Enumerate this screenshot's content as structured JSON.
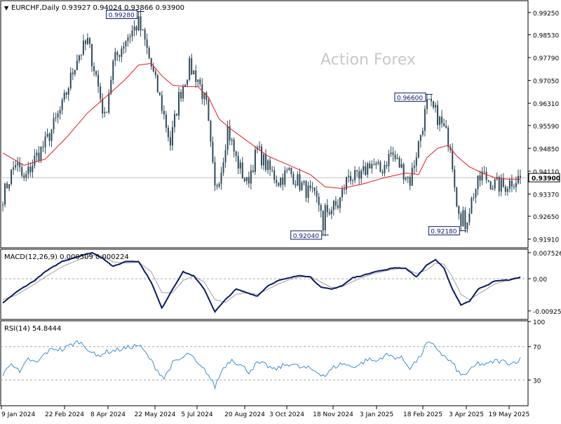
{
  "header": {
    "symbol": "EURCHF,Daily",
    "ohlc": "0.93927 0.94024 0.93866 0.93900"
  },
  "watermark": "Action Forex",
  "colors": {
    "candle": "#2e4a5a",
    "ma": "#e41b1b",
    "macd": "#0b1a66",
    "signal": "#a0a0a0",
    "rsi": "#3a8fd6",
    "grid_dash": "#a8a8a8",
    "frame": "#000000",
    "label_border": "#0b1a66"
  },
  "chart_data": [
    {
      "type": "candlestick",
      "name": "price",
      "ylim": [
        0.9165,
        0.9961
      ],
      "y_ticks": [
        "0.99250",
        "0.98530",
        "0.97790",
        "0.97050",
        "0.96310",
        "0.95590",
        "0.94850",
        "0.94110",
        "0.93370",
        "0.92650",
        "0.91910"
      ],
      "last_price": "0.93900",
      "x_labels": [
        "9 Jan 2024",
        "22 Feb 2024",
        "8 Apr 2024",
        "22 May 2024",
        "5 Jul 2024",
        "20 Aug 2024",
        "3 Oct 2024",
        "18 Nov 2024",
        "3 Jan 2025",
        "18 Feb 2025",
        "3 Apr 2025",
        "19 May 2025"
      ],
      "annotations": [
        {
          "text": "0.99280",
          "value": 0.9928,
          "index": 64
        },
        {
          "text": "0.92040",
          "value": 0.9204,
          "index": 151
        },
        {
          "text": "0.96600",
          "value": 0.966,
          "index": 200
        },
        {
          "text": "0.92180",
          "value": 0.9218,
          "index": 216
        }
      ],
      "keypoints": [
        [
          0,
          0.933
        ],
        [
          6,
          0.944
        ],
        [
          10,
          0.938
        ],
        [
          15,
          0.945
        ],
        [
          20,
          0.95
        ],
        [
          28,
          0.962
        ],
        [
          35,
          0.978
        ],
        [
          40,
          0.983
        ],
        [
          44,
          0.972
        ],
        [
          48,
          0.958
        ],
        [
          52,
          0.976
        ],
        [
          58,
          0.984
        ],
        [
          64,
          0.989
        ],
        [
          67,
          0.983
        ],
        [
          70,
          0.975
        ],
        [
          75,
          0.962
        ],
        [
          79,
          0.95
        ],
        [
          83,
          0.965
        ],
        [
          88,
          0.975
        ],
        [
          92,
          0.971
        ],
        [
          96,
          0.962
        ],
        [
          100,
          0.935
        ],
        [
          103,
          0.942
        ],
        [
          106,
          0.955
        ],
        [
          110,
          0.945
        ],
        [
          115,
          0.937
        ],
        [
          120,
          0.948
        ],
        [
          125,
          0.942
        ],
        [
          130,
          0.938
        ],
        [
          135,
          0.941
        ],
        [
          140,
          0.937
        ],
        [
          146,
          0.933
        ],
        [
          152,
          0.928
        ],
        [
          158,
          0.93
        ],
        [
          163,
          0.94
        ],
        [
          168,
          0.938
        ],
        [
          173,
          0.944
        ],
        [
          178,
          0.941
        ],
        [
          183,
          0.947
        ],
        [
          188,
          0.942
        ],
        [
          192,
          0.938
        ],
        [
          196,
          0.95
        ],
        [
          200,
          0.963
        ],
        [
          204,
          0.96
        ],
        [
          207,
          0.956
        ],
        [
          211,
          0.95
        ],
        [
          214,
          0.932
        ],
        [
          218,
          0.924
        ],
        [
          222,
          0.934
        ],
        [
          226,
          0.94
        ],
        [
          231,
          0.937
        ],
        [
          236,
          0.936
        ],
        [
          240,
          0.938
        ],
        [
          244,
          0.939
        ]
      ],
      "ma_keypoints": [
        [
          0,
          0.947
        ],
        [
          10,
          0.943
        ],
        [
          20,
          0.945
        ],
        [
          30,
          0.952
        ],
        [
          40,
          0.96
        ],
        [
          50,
          0.966
        ],
        [
          58,
          0.971
        ],
        [
          64,
          0.9755
        ],
        [
          70,
          0.976
        ],
        [
          75,
          0.972
        ],
        [
          80,
          0.969
        ],
        [
          86,
          0.9685
        ],
        [
          92,
          0.9685
        ],
        [
          97,
          0.965
        ],
        [
          102,
          0.958
        ],
        [
          107,
          0.955
        ],
        [
          115,
          0.951
        ],
        [
          125,
          0.946
        ],
        [
          135,
          0.943
        ],
        [
          145,
          0.94
        ],
        [
          152,
          0.936
        ],
        [
          160,
          0.9355
        ],
        [
          170,
          0.937
        ],
        [
          180,
          0.939
        ],
        [
          190,
          0.9405
        ],
        [
          196,
          0.94
        ],
        [
          200,
          0.9455
        ],
        [
          205,
          0.9485
        ],
        [
          210,
          0.9495
        ],
        [
          214,
          0.946
        ],
        [
          220,
          0.9425
        ],
        [
          226,
          0.9405
        ],
        [
          232,
          0.939
        ],
        [
          238,
          0.9385
        ],
        [
          244,
          0.9385
        ]
      ]
    },
    {
      "type": "line",
      "name": "MACD(12,26,9) 0.000509 0.000224",
      "ylim": [
        -0.0115,
        0.0083
      ],
      "y_ticks": [
        "0.007526",
        "0.00",
        "-0.009252"
      ],
      "macd_keypoints": [
        [
          0,
          -0.007
        ],
        [
          6,
          -0.004
        ],
        [
          11,
          -0.002
        ],
        [
          15,
          -0.0005
        ],
        [
          20,
          0.002
        ],
        [
          28,
          0.005
        ],
        [
          36,
          0.0065
        ],
        [
          42,
          0.0075
        ],
        [
          47,
          0.006
        ],
        [
          52,
          0.0035
        ],
        [
          58,
          0.005
        ],
        [
          64,
          0.005
        ],
        [
          70,
          -0.001
        ],
        [
          75,
          -0.0085
        ],
        [
          80,
          -0.003
        ],
        [
          85,
          0.002
        ],
        [
          90,
          0.0008
        ],
        [
          95,
          -0.003
        ],
        [
          100,
          -0.0095
        ],
        [
          105,
          -0.006
        ],
        [
          110,
          -0.003
        ],
        [
          115,
          -0.004
        ],
        [
          120,
          -0.005
        ],
        [
          125,
          -0.002
        ],
        [
          130,
          -0.0005
        ],
        [
          135,
          0.0002
        ],
        [
          140,
          0.001
        ],
        [
          145,
          0.0005
        ],
        [
          150,
          -0.0025
        ],
        [
          155,
          -0.003
        ],
        [
          160,
          -0.002
        ],
        [
          165,
          0.0003
        ],
        [
          170,
          0.001
        ],
        [
          175,
          0.002
        ],
        [
          180,
          0.0025
        ],
        [
          185,
          0.0032
        ],
        [
          190,
          0.003
        ],
        [
          195,
          0.0005
        ],
        [
          200,
          0.004
        ],
        [
          204,
          0.0055
        ],
        [
          208,
          0.003
        ],
        [
          212,
          -0.003
        ],
        [
          216,
          -0.0075
        ],
        [
          220,
          -0.0065
        ],
        [
          224,
          -0.003
        ],
        [
          228,
          -0.002
        ],
        [
          232,
          -0.0006
        ],
        [
          236,
          -0.0005
        ],
        [
          240,
          -0.0002
        ],
        [
          244,
          0.0005
        ]
      ],
      "signal_keypoints": [
        [
          0,
          -0.006
        ],
        [
          6,
          -0.0048
        ],
        [
          11,
          -0.003
        ],
        [
          15,
          -0.0015
        ],
        [
          20,
          0.0005
        ],
        [
          28,
          0.0035
        ],
        [
          36,
          0.0055
        ],
        [
          42,
          0.0068
        ],
        [
          47,
          0.0065
        ],
        [
          52,
          0.0048
        ],
        [
          58,
          0.0045
        ],
        [
          64,
          0.0048
        ],
        [
          70,
          0.002
        ],
        [
          75,
          -0.004
        ],
        [
          80,
          -0.004
        ],
        [
          85,
          -0.0005
        ],
        [
          90,
          0.0008
        ],
        [
          95,
          -0.001
        ],
        [
          100,
          -0.006
        ],
        [
          105,
          -0.0068
        ],
        [
          110,
          -0.0045
        ],
        [
          115,
          -0.004
        ],
        [
          120,
          -0.0045
        ],
        [
          125,
          -0.003
        ],
        [
          130,
          -0.0015
        ],
        [
          135,
          -0.0003
        ],
        [
          140,
          0.0005
        ],
        [
          145,
          0.0007
        ],
        [
          150,
          -0.001
        ],
        [
          155,
          -0.0025
        ],
        [
          160,
          -0.0023
        ],
        [
          165,
          -0.0008
        ],
        [
          170,
          0.0005
        ],
        [
          175,
          0.0015
        ],
        [
          180,
          0.0022
        ],
        [
          185,
          0.0028
        ],
        [
          190,
          0.003
        ],
        [
          195,
          0.0015
        ],
        [
          200,
          0.0025
        ],
        [
          204,
          0.0045
        ],
        [
          208,
          0.0042
        ],
        [
          212,
          0.0005
        ],
        [
          216,
          -0.0045
        ],
        [
          220,
          -0.006
        ],
        [
          224,
          -0.0045
        ],
        [
          228,
          -0.003
        ],
        [
          232,
          -0.0015
        ],
        [
          236,
          -0.0008
        ],
        [
          240,
          -0.0003
        ],
        [
          244,
          0.0002
        ]
      ]
    },
    {
      "type": "line",
      "name": "RSI(14) 54.8444",
      "ylim": [
        0,
        100
      ],
      "y_ticks": [
        "100",
        "70",
        "30",
        "0"
      ],
      "levels": [
        70,
        30
      ],
      "keypoints": [
        [
          0,
          35
        ],
        [
          4,
          52
        ],
        [
          8,
          38
        ],
        [
          12,
          55
        ],
        [
          16,
          50
        ],
        [
          20,
          62
        ],
        [
          24,
          68
        ],
        [
          28,
          66
        ],
        [
          32,
          72
        ],
        [
          36,
          76
        ],
        [
          40,
          68
        ],
        [
          44,
          58
        ],
        [
          48,
          63
        ],
        [
          52,
          65
        ],
        [
          58,
          68
        ],
        [
          64,
          72
        ],
        [
          68,
          60
        ],
        [
          72,
          45
        ],
        [
          76,
          32
        ],
        [
          80,
          50
        ],
        [
          84,
          55
        ],
        [
          88,
          62
        ],
        [
          92,
          48
        ],
        [
          96,
          40
        ],
        [
          100,
          22
        ],
        [
          104,
          45
        ],
        [
          108,
          55
        ],
        [
          112,
          48
        ],
        [
          116,
          40
        ],
        [
          120,
          50
        ],
        [
          124,
          48
        ],
        [
          128,
          42
        ],
        [
          132,
          47
        ],
        [
          136,
          50
        ],
        [
          140,
          45
        ],
        [
          144,
          44
        ],
        [
          148,
          40
        ],
        [
          152,
          35
        ],
        [
          156,
          45
        ],
        [
          160,
          50
        ],
        [
          164,
          46
        ],
        [
          168,
          48
        ],
        [
          172,
          55
        ],
        [
          176,
          52
        ],
        [
          180,
          60
        ],
        [
          184,
          58
        ],
        [
          188,
          56
        ],
        [
          192,
          45
        ],
        [
          196,
          55
        ],
        [
          200,
          74
        ],
        [
          204,
          70
        ],
        [
          208,
          58
        ],
        [
          212,
          50
        ],
        [
          216,
          35
        ],
        [
          220,
          40
        ],
        [
          224,
          50
        ],
        [
          228,
          48
        ],
        [
          232,
          53
        ],
        [
          236,
          52
        ],
        [
          240,
          50
        ],
        [
          244,
          54.8
        ]
      ]
    }
  ]
}
